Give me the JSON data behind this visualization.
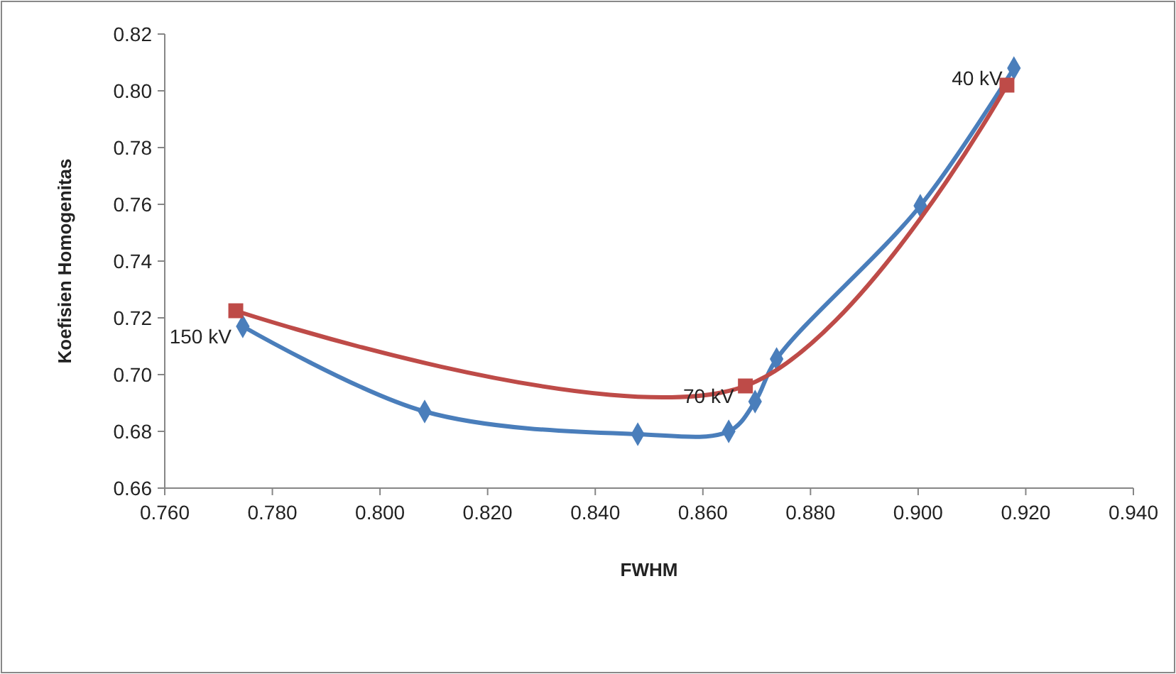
{
  "chart_data": {
    "type": "line",
    "xlabel": "FWHM",
    "ylabel": "Koefisien Homogenitas",
    "xlim": [
      0.76,
      0.94
    ],
    "xticks": [
      {
        "value": 0.76,
        "label": "0.760"
      },
      {
        "value": 0.78,
        "label": "0.780"
      },
      {
        "value": 0.8,
        "label": "0.800"
      },
      {
        "value": 0.82,
        "label": "0.820"
      },
      {
        "value": 0.84,
        "label": "0.840"
      },
      {
        "value": 0.86,
        "label": "0.860"
      },
      {
        "value": 0.88,
        "label": "0.880"
      },
      {
        "value": 0.9,
        "label": "0.900"
      },
      {
        "value": 0.92,
        "label": "0.920"
      },
      {
        "value": 0.94,
        "label": "0.940"
      }
    ],
    "ylim": [
      0.66,
      0.82
    ],
    "yticks": [
      {
        "value": 0.66,
        "label": "0.66"
      },
      {
        "value": 0.68,
        "label": "0.68"
      },
      {
        "value": 0.7,
        "label": "0.70"
      },
      {
        "value": 0.72,
        "label": "0.72"
      },
      {
        "value": 0.74,
        "label": "0.74"
      },
      {
        "value": 0.76,
        "label": "0.76"
      },
      {
        "value": 0.78,
        "label": "0.78"
      },
      {
        "value": 0.8,
        "label": "0.80"
      },
      {
        "value": 0.82,
        "label": "0.82"
      }
    ],
    "grid": false,
    "line_style": "solid",
    "series": [
      {
        "color": "#4a7ebb",
        "marker": "diamond",
        "x": [
          0.7745,
          0.8083,
          0.8479,
          0.8648,
          0.8697,
          0.8737,
          0.9004,
          0.9178
        ],
        "values": [
          0.717,
          0.687,
          0.679,
          0.68,
          0.6905,
          0.7055,
          0.7595,
          0.808
        ]
      },
      {
        "color": "#be4b48",
        "marker": "square",
        "x": [
          0.7732,
          0.8679,
          0.9165
        ],
        "values": [
          0.7225,
          0.696,
          0.802
        ]
      }
    ],
    "annotations": [
      {
        "text": "150 kV",
        "x": 0.7745,
        "y": 0.717
      },
      {
        "text": "70 kV",
        "x": 0.8679,
        "y": 0.696
      },
      {
        "text": "40 kV",
        "x": 0.9178,
        "y": 0.808
      }
    ]
  }
}
